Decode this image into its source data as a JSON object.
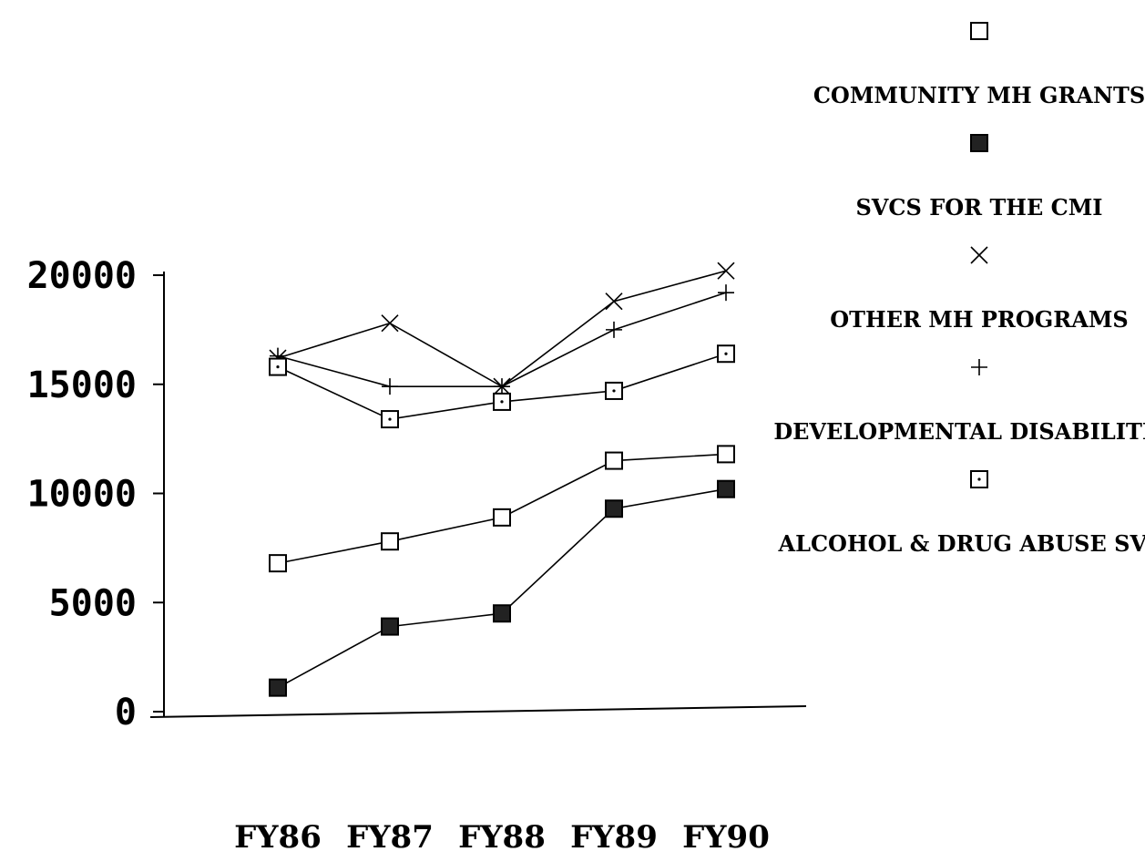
{
  "chart_data": {
    "type": "line",
    "title": "",
    "xlabel": "",
    "ylabel": "",
    "categories": [
      "FY86",
      "FY87",
      "FY88",
      "FY89",
      "FY90"
    ],
    "ylim": [
      0,
      20000
    ],
    "yticks": [
      "0",
      "5000",
      "10000",
      "15000",
      "20000"
    ],
    "grid": false,
    "legend_position": "right",
    "series": [
      {
        "name": "COMMUNITY MH GRANTS",
        "marker": "open-square",
        "values": [
          6800,
          7800,
          8900,
          11500,
          11800
        ]
      },
      {
        "name": "SVCS FOR THE CMI",
        "marker": "filled-square",
        "values": [
          1100,
          3900,
          4500,
          9300,
          10200
        ]
      },
      {
        "name": "OTHER MH PROGRAMS",
        "marker": "x",
        "values": [
          16200,
          17800,
          14900,
          18800,
          20200
        ]
      },
      {
        "name": "DEVELOPMENTAL DISABILITIES",
        "marker": "plus",
        "values": [
          16300,
          14900,
          14900,
          17500,
          19200
        ]
      },
      {
        "name": "ALCOHOL & DRUG ABUSE SVCS",
        "marker": "dotted-square",
        "values": [
          15800,
          13400,
          14200,
          14700,
          16400
        ]
      }
    ]
  }
}
